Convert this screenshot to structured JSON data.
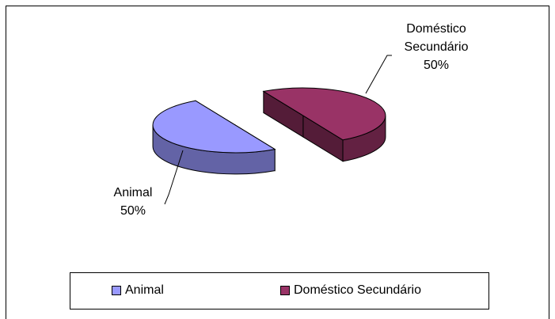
{
  "chart_data": {
    "type": "pie",
    "style": "3d-exploded",
    "categories": [
      "Animal",
      "Doméstico Secundário"
    ],
    "values": [
      50,
      50
    ],
    "unit": "%",
    "colors": [
      "#9999ff",
      "#993366"
    ],
    "data_labels": [
      {
        "line1": "Animal",
        "line2": "",
        "pct": "50%"
      },
      {
        "line1": "Doméstico",
        "line2": "Secundário",
        "pct": "50%"
      }
    ],
    "legend": {
      "placement": "bottom",
      "entries": [
        "Animal",
        "Doméstico Secundário"
      ]
    },
    "title": "",
    "xlabel": "",
    "ylabel": ""
  }
}
